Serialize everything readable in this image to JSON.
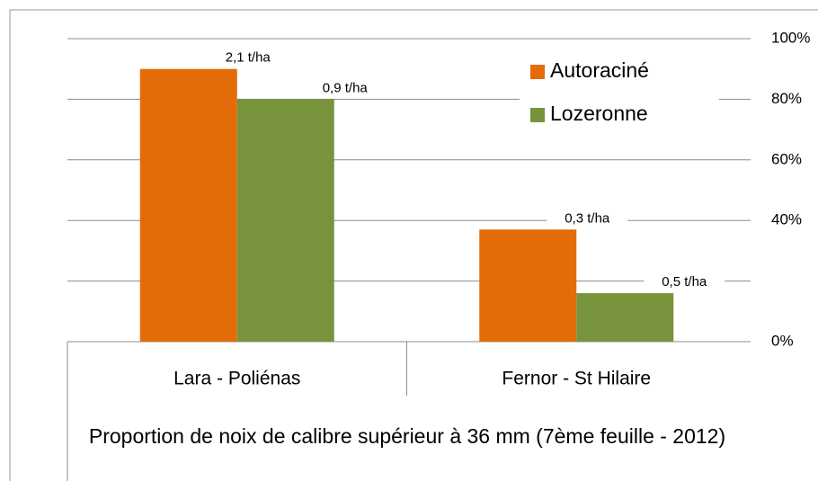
{
  "chart_data": {
    "type": "bar",
    "x_label": "Proportion de noix de calibre supérieur à 36 mm (7ème feuille - 2012)",
    "categories": [
      "Lara - Poliénas",
      "Fernor - St Hilaire"
    ],
    "series": [
      {
        "name": "Autoraciné",
        "color": "#e36c09",
        "values": [
          90,
          37
        ],
        "annotations": [
          "2,1 t/ha",
          "0,3 t/ha"
        ]
      },
      {
        "name": "Lozeronne",
        "color": "#77933c",
        "values": [
          80,
          16
        ],
        "annotations": [
          "0,9 t/ha",
          "0,5 t/ha"
        ]
      }
    ],
    "ylim": [
      0,
      100
    ],
    "yticks": [
      {
        "value": 0,
        "label": "0%"
      },
      20,
      {
        "value": 40,
        "label": "40%"
      },
      {
        "value": 60,
        "label": "60%"
      },
      {
        "value": 80,
        "label": "80%"
      },
      {
        "value": 100,
        "label": "100%"
      }
    ],
    "y_axis_side": "right",
    "grid": true,
    "legend": "upper right"
  }
}
